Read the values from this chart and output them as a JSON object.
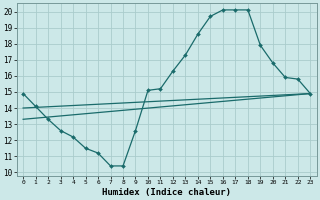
{
  "xlabel": "Humidex (Indice chaleur)",
  "background_color": "#cce8e8",
  "grid_color": "#aacccc",
  "line_color": "#1a6b6b",
  "xlim": [
    -0.5,
    23.5
  ],
  "ylim": [
    9.8,
    20.5
  ],
  "xticks": [
    0,
    1,
    2,
    3,
    4,
    5,
    6,
    7,
    8,
    9,
    10,
    11,
    12,
    13,
    14,
    15,
    16,
    17,
    18,
    19,
    20,
    21,
    22,
    23
  ],
  "yticks": [
    10,
    11,
    12,
    13,
    14,
    15,
    16,
    17,
    18,
    19,
    20
  ],
  "line1_x": [
    0,
    1,
    2,
    3,
    4,
    5,
    6,
    7,
    8,
    9,
    10,
    11,
    12,
    13,
    14,
    15,
    16,
    17,
    18,
    19,
    20,
    21,
    22,
    23
  ],
  "line1_y": [
    14.9,
    14.1,
    13.3,
    12.6,
    12.2,
    11.5,
    11.2,
    10.4,
    10.4,
    12.6,
    15.1,
    15.2,
    16.3,
    17.3,
    18.6,
    19.7,
    20.1,
    20.1,
    20.1,
    17.9,
    16.8,
    15.9,
    15.8,
    14.9
  ],
  "line2_x": [
    0,
    23
  ],
  "line2_y": [
    14.0,
    14.9
  ],
  "line3_x": [
    0,
    23
  ],
  "line3_y": [
    13.3,
    14.9
  ]
}
